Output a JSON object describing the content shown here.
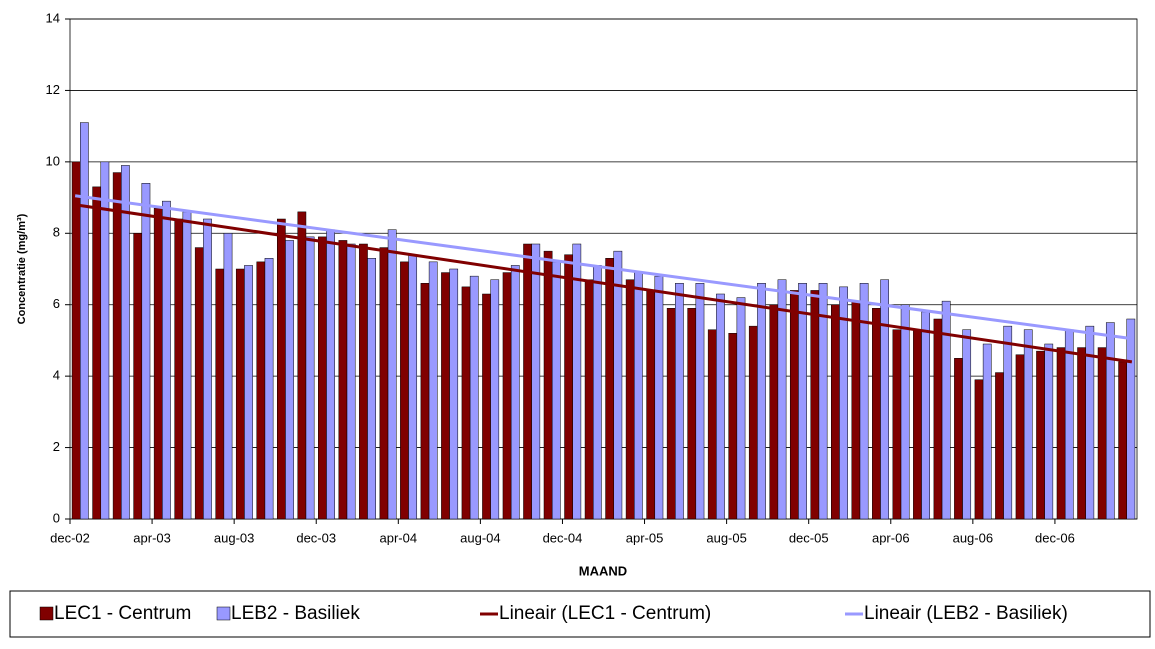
{
  "chart_data": {
    "type": "bar",
    "categories": [
      "dec-02",
      null,
      null,
      null,
      "apr-03",
      null,
      null,
      null,
      "aug-03",
      null,
      null,
      null,
      "dec-03",
      null,
      null,
      null,
      "apr-04",
      null,
      null,
      null,
      "aug-04",
      null,
      null,
      null,
      "dec-04",
      null,
      null,
      null,
      "apr-05",
      null,
      null,
      null,
      "aug-05",
      null,
      null,
      null,
      "dec-05",
      null,
      null,
      null,
      "apr-06",
      null,
      null,
      null,
      "aug-06",
      null,
      null,
      null,
      "dec-06",
      null,
      null,
      null
    ],
    "series": [
      {
        "name": "LEC1 - Centrum",
        "color": "#800000",
        "values": [
          10.0,
          9.3,
          9.7,
          8.0,
          8.7,
          8.4,
          7.6,
          7.0,
          7.0,
          7.2,
          8.4,
          8.6,
          7.9,
          7.8,
          7.7,
          7.6,
          7.2,
          6.6,
          6.9,
          6.5,
          6.3,
          6.9,
          7.7,
          7.5,
          7.4,
          6.7,
          7.3,
          6.7,
          6.4,
          5.9,
          5.9,
          5.3,
          5.2,
          5.4,
          6.0,
          6.4,
          6.4,
          6.0,
          6.1,
          5.9,
          5.3,
          5.3,
          5.6,
          4.5,
          3.9,
          4.1,
          4.6,
          4.7,
          4.8,
          4.8,
          4.8,
          4.4
        ]
      },
      {
        "name": "LEB2 - Basiliek",
        "color": "#9999ff",
        "values": [
          11.1,
          10.0,
          9.9,
          9.4,
          8.9,
          8.6,
          8.4,
          8.0,
          7.1,
          7.3,
          7.8,
          7.9,
          8.1,
          7.7,
          7.3,
          8.1,
          7.4,
          7.2,
          7.0,
          6.8,
          6.7,
          7.1,
          7.7,
          7.2,
          7.7,
          7.1,
          7.5,
          6.9,
          6.8,
          6.6,
          6.6,
          6.3,
          6.2,
          6.6,
          6.7,
          6.6,
          6.6,
          6.5,
          6.6,
          6.7,
          6.0,
          5.8,
          6.1,
          5.3,
          4.9,
          5.4,
          5.3,
          4.9,
          5.3,
          5.4,
          5.5,
          5.6
        ]
      }
    ],
    "trendlines": [
      {
        "name": "Lineair (LEC1 - Centrum)",
        "color": "#800000",
        "start": 8.8,
        "end": 4.4
      },
      {
        "name": "Lineair (LEB2 - Basiliek)",
        "color": "#9999ff",
        "start": 9.05,
        "end": 5.05
      }
    ],
    "ylabel": "Concentratie (mg/m³)",
    "xlabel": "MAAND",
    "ylim": [
      0,
      14
    ],
    "yticks": [
      0,
      2,
      4,
      6,
      8,
      10,
      12,
      14
    ],
    "grid": true,
    "legend": "bottom"
  }
}
